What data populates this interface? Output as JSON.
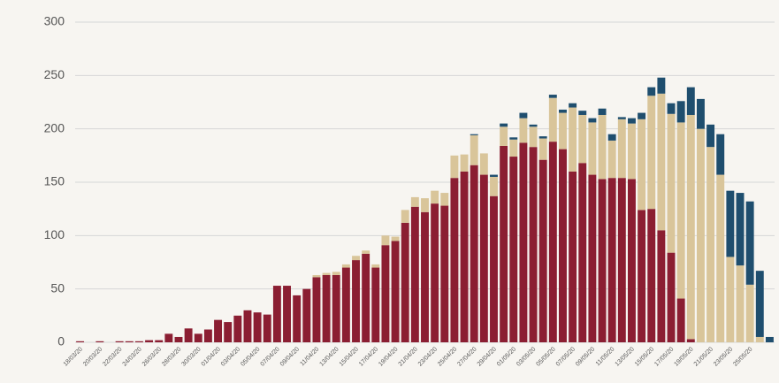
{
  "chart_data": {
    "type": "stacked-bar",
    "categories": [
      "18/03/20",
      null,
      "20/03/20",
      null,
      "22/03/20",
      null,
      "24/03/20",
      null,
      "26/03/20",
      null,
      "28/03/20",
      null,
      "30/03/20",
      null,
      "01/04/20",
      null,
      "03/04/20",
      null,
      "05/04/20",
      null,
      "07/04/20",
      null,
      "09/04/20",
      null,
      "11/04/20",
      null,
      "13/04/20",
      null,
      "15/04/20",
      null,
      "17/04/20",
      null,
      "19/04/20",
      null,
      "21/04/20",
      null,
      "23/04/20",
      null,
      "25/04/20",
      null,
      "27/04/20",
      null,
      "29/04/20",
      null,
      "01/05/20",
      null,
      "03/05/20",
      null,
      "05/05/20",
      null,
      "07/05/20",
      null,
      "09/05/20",
      null,
      "11/05/20",
      null,
      "13/05/20",
      null,
      "15/05/20",
      null,
      "17/05/20",
      null,
      "19/05/20",
      null,
      "21/05/20",
      null,
      "23/05/20",
      null,
      "25/05/20",
      null,
      null
    ],
    "series": [
      {
        "color": "#8b1e32",
        "values": [
          1,
          0,
          1,
          0,
          1,
          1,
          1,
          2,
          2,
          8,
          5,
          13,
          8,
          12,
          21,
          19,
          25,
          30,
          28,
          26,
          53,
          53,
          44,
          50,
          61,
          63,
          63,
          70,
          77,
          83,
          70,
          91,
          95,
          112,
          127,
          122,
          130,
          128,
          154,
          160,
          166,
          157,
          137,
          184,
          174,
          187,
          183,
          171,
          188,
          181,
          160,
          168,
          157,
          153,
          154,
          154,
          153,
          124,
          125,
          105,
          84,
          41,
          3,
          0,
          0,
          0,
          0,
          0,
          0,
          0,
          0
        ]
      },
      {
        "color": "#d9c59a",
        "values": [
          0,
          0,
          0,
          0,
          0,
          0,
          0,
          0,
          0,
          0,
          0,
          0,
          0,
          0,
          0,
          0,
          0,
          0,
          0,
          0,
          0,
          0,
          0,
          0,
          2,
          2,
          3,
          3,
          4,
          3,
          3,
          9,
          4,
          12,
          9,
          13,
          12,
          12,
          21,
          16,
          28,
          20,
          18,
          18,
          16,
          23,
          19,
          20,
          41,
          34,
          60,
          45,
          49,
          60,
          35,
          55,
          52,
          85,
          106,
          128,
          130,
          165,
          210,
          200,
          183,
          157,
          80,
          72,
          54,
          5,
          0
        ]
      },
      {
        "color": "#1f4e6e",
        "values": [
          0,
          0,
          0,
          0,
          0,
          0,
          0,
          0,
          0,
          0,
          0,
          0,
          0,
          0,
          0,
          0,
          0,
          0,
          0,
          0,
          0,
          0,
          0,
          0,
          0,
          0,
          0,
          0,
          0,
          0,
          0,
          0,
          0,
          0,
          0,
          0,
          0,
          0,
          0,
          0,
          1,
          0,
          2,
          3,
          2,
          5,
          2,
          2,
          3,
          3,
          4,
          4,
          4,
          6,
          6,
          2,
          5,
          6,
          8,
          15,
          10,
          20,
          26,
          28,
          21,
          38,
          62,
          68,
          78,
          62,
          5
        ]
      }
    ],
    "ylim": [
      0,
      300
    ],
    "yticks": [
      0,
      50,
      100,
      150,
      200,
      250,
      300
    ],
    "grid": true
  }
}
